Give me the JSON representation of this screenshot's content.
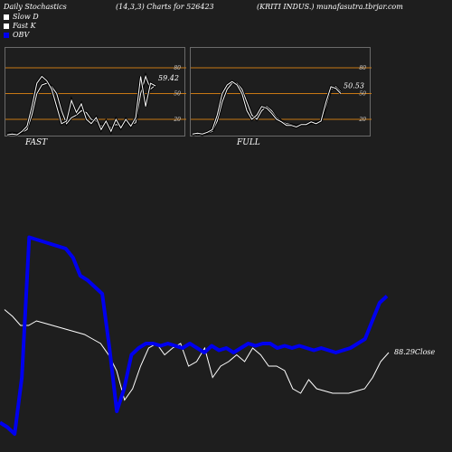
{
  "header": {
    "left": "Daily Stochastics",
    "params": "(14,3,3) Charts for 526423",
    "right": "(KRITI INDUS.) munafasutra.tbrjar.com"
  },
  "legend": {
    "items": [
      {
        "label": "Slow  D",
        "color": "#ffffff"
      },
      {
        "label": "Fast K",
        "color": "#ffffff"
      },
      {
        "label": "OBV",
        "color": "#0000ee"
      }
    ]
  },
  "colors": {
    "background": "#1e1e1e",
    "level_line": "#c87814",
    "obv": "#0000ee",
    "line": "#ffffff"
  },
  "chart_data": [
    {
      "type": "line",
      "panel": "FAST",
      "title": "FAST",
      "ylim": [
        0,
        100
      ],
      "levels": [
        20,
        50,
        80
      ],
      "y_ticks": [
        "20",
        "50",
        "80"
      ],
      "value_label": "59.42",
      "series": [
        {
          "values": [
            3,
            4,
            3,
            5,
            8,
            25,
            50,
            60,
            62,
            58,
            50,
            30,
            15,
            22,
            25,
            30,
            28,
            20,
            18,
            12,
            16,
            10,
            14,
            12,
            18,
            14,
            16,
            50,
            70,
            55,
            60
          ]
        },
        {
          "values": [
            2,
            3,
            2,
            6,
            12,
            35,
            62,
            70,
            65,
            55,
            35,
            15,
            18,
            42,
            28,
            38,
            20,
            15,
            22,
            8,
            18,
            6,
            20,
            10,
            20,
            12,
            22,
            70,
            35,
            62,
            59
          ]
        }
      ]
    },
    {
      "type": "line",
      "panel": "FULL",
      "title": "FULL",
      "ylim": [
        0,
        100
      ],
      "levels": [
        20,
        50,
        80
      ],
      "y_ticks": [
        "20",
        "50",
        "80"
      ],
      "value_label": "50.53",
      "series": [
        {
          "values": [
            2,
            3,
            2,
            4,
            6,
            18,
            40,
            55,
            62,
            62,
            55,
            40,
            25,
            20,
            30,
            35,
            30,
            22,
            18,
            15,
            14,
            12,
            14,
            14,
            16,
            16,
            18,
            35,
            55,
            58,
            52
          ]
        },
        {
          "values": [
            3,
            4,
            3,
            5,
            8,
            25,
            50,
            60,
            64,
            60,
            50,
            30,
            20,
            25,
            35,
            33,
            27,
            20,
            17,
            13,
            13,
            11,
            14,
            14,
            17,
            15,
            18,
            40,
            58,
            56,
            50
          ]
        }
      ]
    },
    {
      "type": "line",
      "panel": "PRICE-OBV",
      "value_label": "88.29",
      "value_label_suffix": "Close",
      "ylim": [
        0,
        100
      ],
      "series": [
        {
          "name": "OBV",
          "values": [
            5,
            3,
            0,
            25,
            87,
            86,
            85,
            84,
            83,
            82,
            78,
            70,
            68,
            65,
            62,
            38,
            10,
            20,
            35,
            38,
            40,
            40,
            39,
            40,
            39,
            38,
            40,
            38,
            36,
            39,
            37,
            38,
            36,
            38,
            40,
            39,
            40,
            40,
            38,
            39,
            38,
            39,
            38,
            37,
            38,
            37,
            36,
            37,
            38,
            40,
            42,
            50,
            58,
            61
          ]
        },
        {
          "name": "Close",
          "values": [
            55,
            52,
            48,
            48,
            50,
            49,
            48,
            47,
            46,
            45,
            44,
            42,
            40,
            35,
            28,
            15,
            20,
            30,
            38,
            40,
            35,
            38,
            40,
            30,
            32,
            38,
            25,
            30,
            32,
            35,
            32,
            38,
            35,
            30,
            30,
            28,
            20,
            18,
            24,
            20,
            19,
            18,
            18,
            18,
            19,
            20,
            25,
            32,
            36
          ]
        }
      ]
    }
  ]
}
